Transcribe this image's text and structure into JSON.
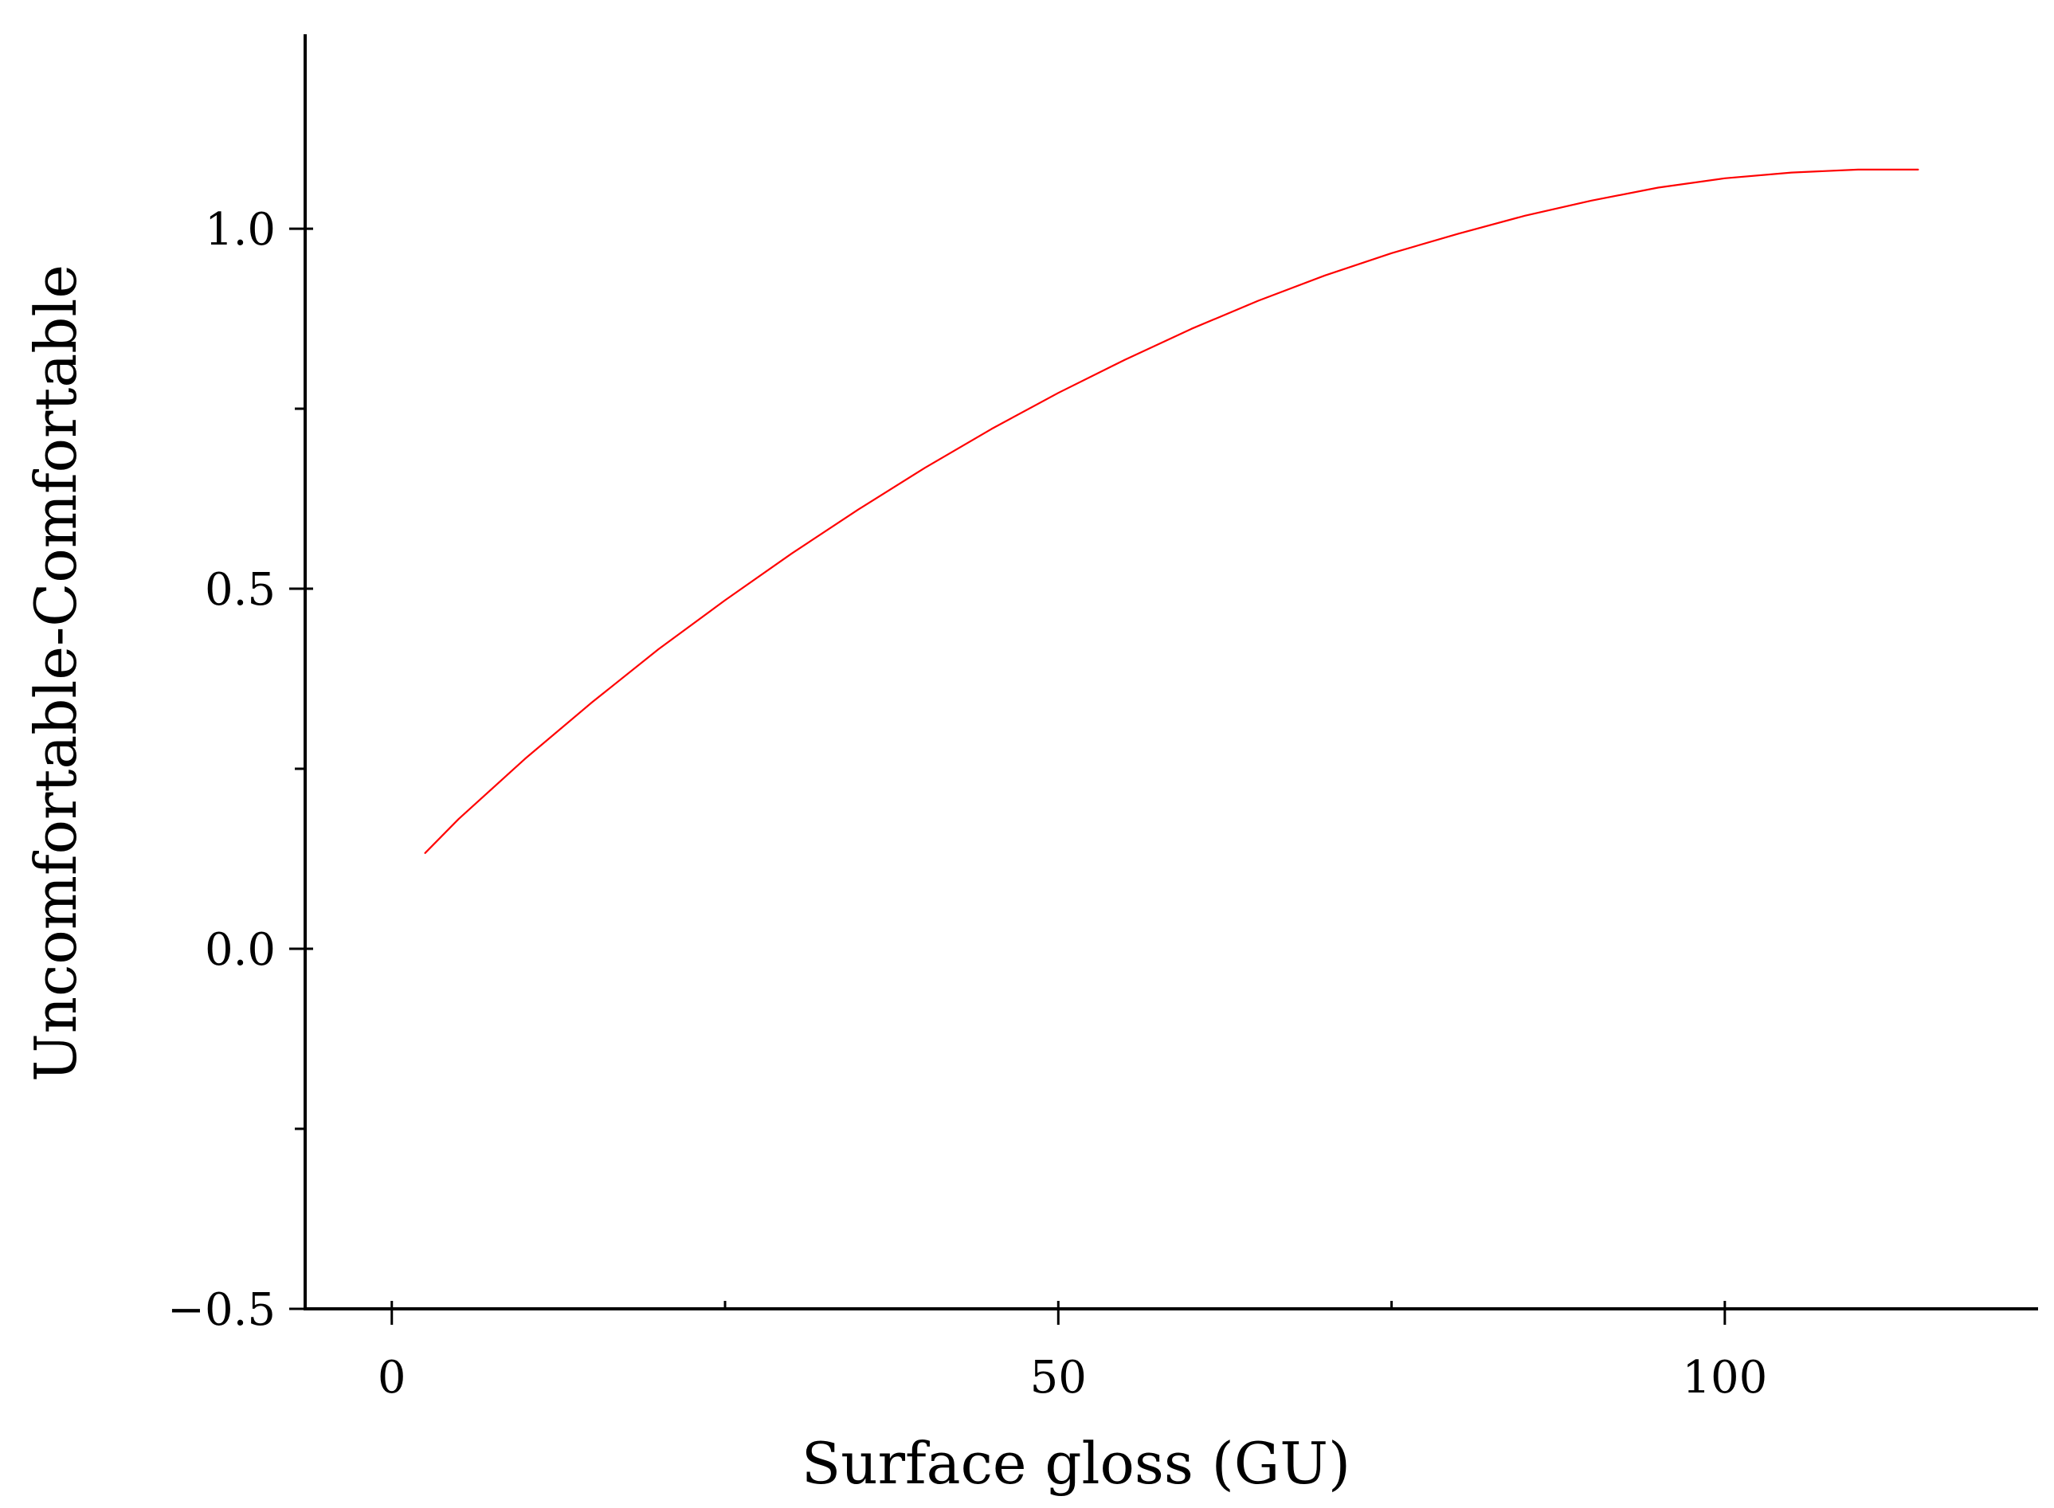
{
  "chart_data": {
    "type": "line",
    "title": "",
    "xlabel": "Surface gloss (GU)",
    "ylabel": "Uncomfortable-Comfortable",
    "xlim": [
      -6.5,
      123.5
    ],
    "ylim": [
      -0.5,
      1.27
    ],
    "xticks": [
      {
        "value": 0,
        "label": "0"
      },
      {
        "value": 50,
        "label": "50"
      },
      {
        "value": 100,
        "label": "100"
      }
    ],
    "xminor_ticks": [
      25,
      75
    ],
    "yticks": [
      {
        "value": -0.5,
        "label": "−0.5"
      },
      {
        "value": 0.0,
        "label": "0.0"
      },
      {
        "value": 0.5,
        "label": "0.5"
      },
      {
        "value": 1.0,
        "label": "1.0"
      }
    ],
    "yminor_ticks": [
      -0.25,
      0.25,
      0.75
    ],
    "grid": false,
    "legend": "none",
    "series": [
      {
        "color": "#ff0000",
        "x": [
          2.5,
          5,
          10,
          15,
          20,
          25,
          30,
          35,
          40,
          45,
          50,
          55,
          60,
          65,
          70,
          75,
          80,
          85,
          90,
          95,
          100,
          105,
          110,
          114.5
        ],
        "y": [
          0.133,
          0.18,
          0.264,
          0.342,
          0.416,
          0.484,
          0.549,
          0.61,
          0.668,
          0.722,
          0.772,
          0.818,
          0.861,
          0.9,
          0.935,
          0.966,
          0.993,
          1.018,
          1.039,
          1.057,
          1.07,
          1.078,
          1.082,
          1.082
        ]
      }
    ]
  }
}
